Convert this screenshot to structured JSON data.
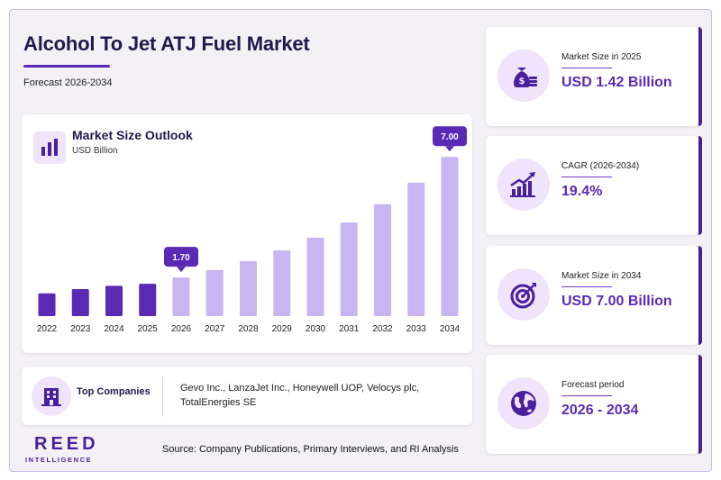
{
  "header": {
    "title": "Alcohol To Jet ATJ Fuel Market",
    "subtitle": "Forecast 2026-2034"
  },
  "chart_data": {
    "type": "bar",
    "title": "Market Size Outlook",
    "ylabel": "USD Billion",
    "categories": [
      "2022",
      "2023",
      "2024",
      "2025",
      "2026",
      "2027",
      "2028",
      "2029",
      "2030",
      "2031",
      "2032",
      "2033",
      "2034"
    ],
    "values": [
      1.0,
      1.19,
      1.33,
      1.42,
      1.7,
      2.03,
      2.42,
      2.89,
      3.45,
      4.12,
      4.92,
      5.87,
      7.0
    ],
    "historical_color": "#5b2ab4",
    "forecast_color": "#c7b6f2",
    "callouts": [
      {
        "category": "2026",
        "label": "1.70"
      },
      {
        "category": "2034",
        "label": "7.00"
      }
    ],
    "ylim": [
      0,
      7.8
    ],
    "grid": false,
    "legend": "none"
  },
  "companies": {
    "label": "Top Companies",
    "text": "Gevo Inc., LanzaJet Inc., Honeywell UOP, Velocys plc, TotalEnergies SE"
  },
  "stats": [
    {
      "label": "Market Size in 2025",
      "value": "USD 1.42 Billion",
      "icon": "money-bag-icon"
    },
    {
      "label": "CAGR (2026-2034)",
      "value": "19.4%",
      "icon": "growth-chart-icon"
    },
    {
      "label": "Market Size in 2034",
      "value": "USD 7.00 Billion",
      "icon": "target-icon"
    },
    {
      "label": "Forecast period",
      "value": "2026 - 2034",
      "icon": "globe-icon"
    }
  ],
  "footer": {
    "logo_main": "REED",
    "logo_sub": "INTELLIGENCE",
    "source": "Source: Company Publications, Primary Interviews, and RI Analysis"
  },
  "colors": {
    "accent": "#5b2ab4",
    "dark_text": "#1e1a4d",
    "icon_bg": "#efe4fb"
  }
}
